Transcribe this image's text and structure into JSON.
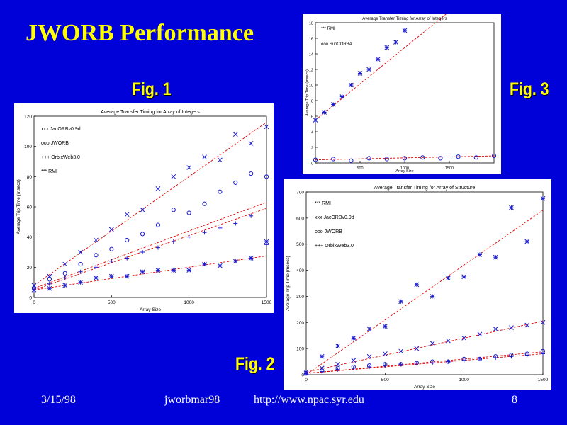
{
  "slide": {
    "title": "JWORB Performance",
    "fig1_label": "Fig. 1",
    "fig2_label": "Fig. 2",
    "fig3_label": "Fig. 3",
    "footer_date": "3/15/98",
    "footer_file": "jworbmar98",
    "footer_url": "http://www.npac.syr.edu",
    "footer_page": "8"
  },
  "chart_data": [
    {
      "type": "scatter",
      "title": "Average Transfer Timing for Array of Integers",
      "xlabel": "Array Size",
      "ylabel": "Average Trip Time (msecs)",
      "xlim": [
        0,
        1500
      ],
      "ylim": [
        0,
        120
      ],
      "xticks": [
        0,
        500,
        1000,
        1500
      ],
      "yticks": [
        0,
        20,
        40,
        60,
        80,
        100,
        120
      ],
      "legend_position": "top-left",
      "series": [
        {
          "name": "JacORBv0.9d",
          "marker": "x",
          "fit": [
            8,
            0.072
          ],
          "x": [
            0,
            100,
            200,
            300,
            400,
            500,
            600,
            700,
            800,
            900,
            1000,
            1100,
            1200,
            1300,
            1400,
            1500
          ],
          "y": [
            8,
            14,
            22,
            30,
            38,
            45,
            55,
            58,
            72,
            80,
            86,
            93,
            91,
            108,
            102,
            113
          ]
        },
        {
          "name": "JWORB",
          "marker": "o",
          "fit": [
            6,
            0.038
          ],
          "x": [
            0,
            100,
            200,
            300,
            400,
            500,
            600,
            700,
            800,
            900,
            1000,
            1100,
            1200,
            1300,
            1400,
            1500
          ],
          "y": [
            6,
            12,
            16,
            22,
            28,
            32,
            38,
            42,
            48,
            58,
            56,
            62,
            70,
            76,
            82,
            80
          ]
        },
        {
          "name": "OrbixWeb3.0",
          "marker": "+",
          "fit": [
            5,
            0.036
          ],
          "x": [
            0,
            100,
            200,
            300,
            400,
            500,
            600,
            700,
            800,
            900,
            1000,
            1100,
            1200,
            1300,
            1400,
            1500
          ],
          "y": [
            5,
            9,
            13,
            17,
            20,
            24,
            26,
            30,
            33,
            37,
            40,
            43,
            46,
            49,
            54,
            35
          ]
        },
        {
          "name": "RMI",
          "marker": "*",
          "fit": [
            5,
            0.015
          ],
          "x": [
            0,
            100,
            200,
            300,
            400,
            500,
            600,
            700,
            800,
            900,
            1000,
            1100,
            1200,
            1300,
            1400,
            1500
          ],
          "y": [
            5,
            6,
            8,
            10,
            13,
            14,
            14,
            17,
            18,
            18,
            18,
            22,
            21,
            24,
            26,
            37
          ]
        }
      ]
    },
    {
      "type": "scatter",
      "title": "Average Transfer Timing for Array of Structure",
      "xlabel": "Array Size",
      "ylabel": "Average Trip Time (msecs)",
      "xlim": [
        0,
        1500
      ],
      "ylim": [
        0,
        700
      ],
      "xticks": [
        0,
        500,
        1000,
        1500
      ],
      "yticks": [
        0,
        100,
        200,
        300,
        400,
        500,
        600,
        700
      ],
      "legend_position": "top-left",
      "series": [
        {
          "name": "RMI",
          "marker": "*",
          "fit": [
            0,
            0.42
          ],
          "x": [
            0,
            100,
            200,
            300,
            400,
            500,
            600,
            700,
            800,
            900,
            1000,
            1100,
            1200,
            1300,
            1400,
            1500
          ],
          "y": [
            5,
            70,
            110,
            140,
            175,
            185,
            280,
            345,
            300,
            370,
            375,
            460,
            450,
            640,
            510,
            675
          ]
        },
        {
          "name": "JacORBv0.9d",
          "marker": "x",
          "fit": [
            10,
            0.13
          ],
          "x": [
            0,
            100,
            200,
            300,
            400,
            500,
            600,
            700,
            800,
            900,
            1000,
            1100,
            1200,
            1300,
            1400,
            1500
          ],
          "y": [
            10,
            25,
            40,
            55,
            70,
            80,
            90,
            100,
            120,
            130,
            140,
            155,
            175,
            180,
            190,
            200
          ]
        },
        {
          "name": "JWORB",
          "marker": "o",
          "fit": [
            5,
            0.055
          ],
          "x": [
            0,
            100,
            200,
            300,
            400,
            500,
            600,
            700,
            800,
            900,
            1000,
            1100,
            1200,
            1300,
            1400,
            1500
          ],
          "y": [
            5,
            15,
            25,
            30,
            35,
            40,
            40,
            45,
            50,
            50,
            60,
            60,
            70,
            75,
            80,
            90
          ]
        },
        {
          "name": "OrbixWeb3.0",
          "marker": "+",
          "fit": [
            5,
            0.05
          ],
          "x": [
            0,
            100,
            200,
            300,
            400,
            500,
            600,
            700,
            800,
            900,
            1000,
            1100,
            1200,
            1300,
            1400,
            1500
          ],
          "y": [
            5,
            12,
            20,
            25,
            30,
            35,
            40,
            45,
            45,
            50,
            55,
            60,
            65,
            70,
            75,
            80
          ]
        }
      ]
    },
    {
      "type": "scatter",
      "title": "Average Transfer Timing for Array of Integers",
      "xlabel": "Array Size",
      "ylabel": "Average Trip Time (msecs)",
      "xlim": [
        0,
        2000
      ],
      "ylim": [
        0,
        18
      ],
      "xticks": [
        500,
        1000,
        1500
      ],
      "yticks": [
        0,
        2,
        4,
        6,
        8,
        10,
        12,
        14,
        16,
        18
      ],
      "legend_position": "top-left",
      "series": [
        {
          "name": "RMI",
          "marker": "*",
          "fit": [
            5.5,
            0.0093
          ],
          "x": [
            0,
            100,
            200,
            300,
            400,
            500,
            600,
            700,
            800,
            900,
            1000
          ],
          "y": [
            5.5,
            6.5,
            7.5,
            8.5,
            10.0,
            11.5,
            12.0,
            13.3,
            14.8,
            15.5,
            17.0
          ]
        },
        {
          "name": "SunCORBA",
          "marker": "o",
          "fit": [
            0.4,
            0.00025
          ],
          "x": [
            0,
            200,
            400,
            600,
            800,
            1000,
            1200,
            1400,
            1600,
            1800,
            2000
          ],
          "y": [
            0.4,
            0.5,
            0.3,
            0.6,
            0.5,
            0.6,
            0.7,
            0.6,
            0.8,
            0.7,
            0.9
          ]
        }
      ]
    }
  ]
}
